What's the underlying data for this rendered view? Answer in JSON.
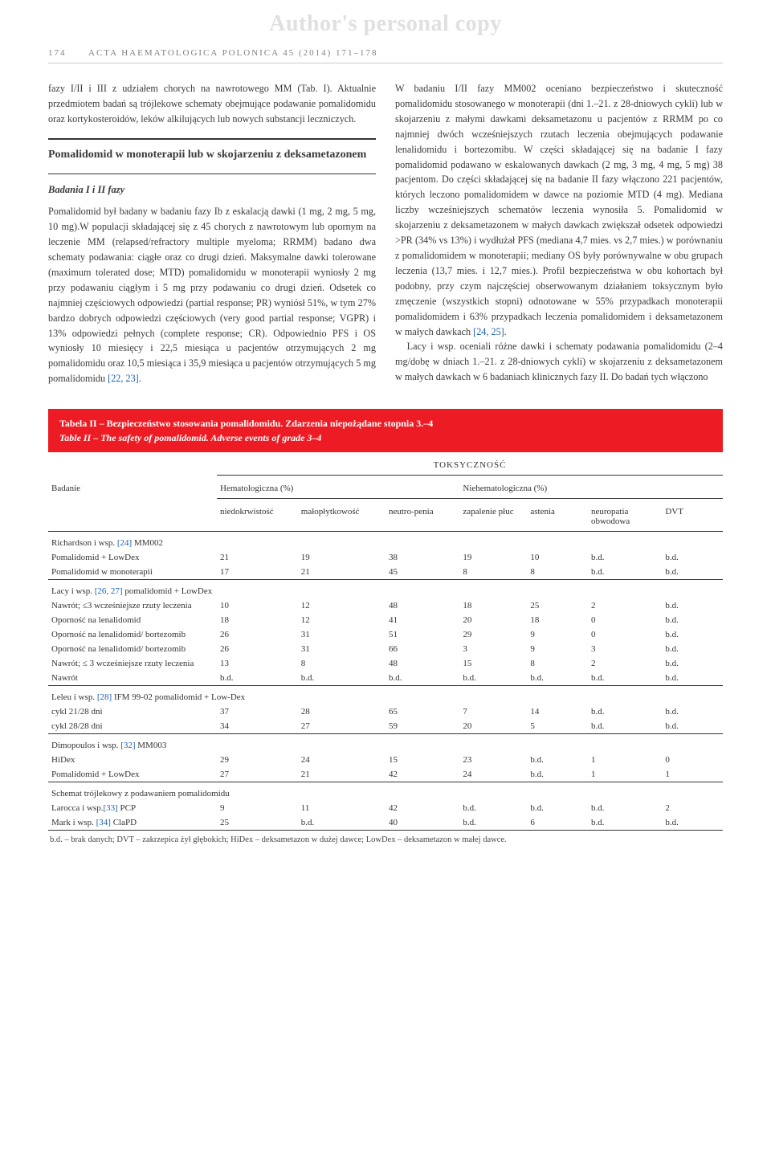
{
  "watermark": "Author's personal copy",
  "header": {
    "page_number": "174",
    "journal_line": "ACTA HAEMATOLOGICA POLONICA 45 (2014) 171–178"
  },
  "left_column": {
    "p1": "fazy I/II i III z udziałem chorych na nawrotowego MM (Tab. I). Aktualnie przedmiotem badań są trójlekowe schematy obejmujące podawanie pomalidomidu oraz kortykosteroidów, leków alkilujących lub nowych substancji leczniczych.",
    "section_title": "Pomalidomid w monoterapii lub w skojarzeniu z deksametazonem",
    "subheading1": "Badania I i II fazy",
    "p2": "Pomalidomid był badany w badaniu fazy Ib z eskalacją dawki (1 mg, 2 mg, 5 mg, 10 mg).W populacji składającej się z 45 chorych z nawrotowym lub opornym na leczenie MM (relapsed/refractory multiple myeloma; RRMM) badano dwa schematy podawania: ciągłe oraz co drugi dzień. Maksymalne dawki tolerowane (maximum tolerated dose; MTD) pomalidomidu w monoterapii wyniosły 2 mg przy podawaniu ciągłym i 5 mg przy podawaniu co drugi dzień. Odsetek co najmniej częściowych odpowiedzi (partial response; PR) wyniósł 51%, w tym 27% bardzo dobrych odpowiedzi częściowych (very good partial response; VGPR) i 13% odpowiedzi pełnych (complete response; CR). Odpowiednio PFS i OS wyniosły 10 miesięcy i 22,5 miesiąca u pacjentów otrzymujących 2 mg pomalidomidu oraz 10,5 miesiąca i 35,9 miesiąca u pacjentów otrzymujących 5 mg pomalidomidu ",
    "refs1": "[22, 23]",
    "p2_tail": "."
  },
  "right_column": {
    "p1a": "W badaniu I/II fazy MM002 oceniano bezpieczeństwo i skuteczność pomalidomidu stosowanego w monoterapii (dni 1.–21. z 28-dniowych cykli) lub w skojarzeniu z małymi dawkami deksametazonu u pacjentów z RRMM po co najmniej dwóch wcześniejszych rzutach leczenia obejmujących podawanie lenalidomidu i bortezomibu. W części składającej się na badanie I fazy pomalidomid podawano w eskalowanych dawkach (2 mg, 3 mg, 4 mg, 5 mg) 38 pacjentom. Do części składającej się na badanie II fazy włączono 221 pacjentów, których leczono pomalidomidem w dawce na poziomie MTD (4 mg). Mediana liczby wcześniejszych schematów leczenia wynosiła 5. Pomalidomid w skojarzeniu z deksametazonem w małych dawkach zwiększał odsetek odpowiedzi >PR (34% vs 13%) i wydłużał PFS (mediana 4,7 mies. vs 2,7 mies.) w porównaniu z pomalidomidem w monoterapii; mediany OS były porównywalne w obu grupach leczenia (13,7 mies. i 12,7 mies.). Profil bezpieczeństwa w obu kohortach był podobny, przy czym najczęściej obserwowanym działaniem toksycznym było zmęczenie (wszystkich stopni) odnotowane w 55% przypadkach monoterapii pomalidomidem i 63% przypadkach leczenia pomalidomidem i deksametazonem w małych dawkach ",
    "refs1": "[24, 25]",
    "p1b": ".",
    "p2": "Lacy i wsp. oceniali różne dawki i schematy podawania pomalidomidu (2–4 mg/dobę w dniach 1.–21. z 28-dniowych cykli) w skojarzeniu z deksametazonem w małych dawkach w 6 badaniach klinicznych fazy II. Do badań tych włączono"
  },
  "table": {
    "title_pl": "Tabela II – Bezpieczeństwo stosowania pomalidomidu. Zdarzenia niepożądane stopnia 3.–4",
    "title_en": "Table II – The safety of pomalidomid. Adverse events of grade 3–4",
    "toxheader": "TOKSYCZNOŚĆ",
    "col_study": "Badanie",
    "col_hema": "Hematologiczna (%)",
    "col_nonhema": "Niehematologiczna (%)",
    "sub": {
      "niedokrwistosc": "niedokrwistość",
      "maloplytkowosc": "małopłytkowość",
      "neutropenia": "neutro-penia",
      "zapalenie": "zapalenie płuc",
      "astenia": "astenia",
      "neuropatia": "neuropatia obwodowa",
      "dvt": "DVT"
    },
    "groups": [
      {
        "label": "Richardson i wsp. ",
        "ref": "[24]",
        "label_tail": " MM002",
        "rows": [
          {
            "name": "Pomalidomid + LowDex",
            "v": [
              "21",
              "19",
              "38",
              "19",
              "10",
              "b.d.",
              "b.d."
            ]
          },
          {
            "name": "Pomalidomid w monoterapii",
            "v": [
              "17",
              "21",
              "45",
              "8",
              "8",
              "b.d.",
              "b.d."
            ]
          }
        ]
      },
      {
        "label": "Lacy i wsp. ",
        "ref": "[26, 27]",
        "label_tail": " pomalidomid + LowDex",
        "rows": [
          {
            "name": "Nawrót; ≤3 wcześniejsze rzuty leczenia",
            "v": [
              "10",
              "12",
              "48",
              "18",
              "25",
              "2",
              "b.d."
            ]
          },
          {
            "name": "Oporność na lenalidomid",
            "v": [
              "18",
              "12",
              "41",
              "20",
              "18",
              "0",
              "b.d."
            ]
          },
          {
            "name": "Oporność na lenalidomid/ bortezomib",
            "v": [
              "26",
              "31",
              "51",
              "29",
              "9",
              "0",
              "b.d."
            ]
          },
          {
            "name": "Oporność na lenalidomid/ bortezomib",
            "v": [
              "26",
              "31",
              "66",
              "3",
              "9",
              "3",
              "b.d."
            ]
          },
          {
            "name": "Nawrót; ≤ 3 wcześniejsze rzuty leczenia",
            "v": [
              "13",
              "8",
              "48",
              "15",
              "8",
              "2",
              "b.d."
            ]
          },
          {
            "name": "Nawrót",
            "v": [
              "b.d.",
              "b.d.",
              "b.d.",
              "b.d.",
              "b.d.",
              "b.d.",
              "b.d."
            ]
          }
        ]
      },
      {
        "label": "Leleu i wsp. ",
        "ref": "[28]",
        "label_tail": " IFM 99-02 pomalidomid + Low-Dex",
        "rows": [
          {
            "name": "cykl 21/28 dni",
            "v": [
              "37",
              "28",
              "65",
              "7",
              "14",
              "b.d.",
              "b.d."
            ]
          },
          {
            "name": "cykl 28/28 dni",
            "v": [
              "34",
              "27",
              "59",
              "20",
              "5",
              "b.d.",
              "b.d."
            ]
          }
        ]
      },
      {
        "label": "Dimopoulos i wsp. ",
        "ref": "[32]",
        "label_tail": " MM003",
        "rows": [
          {
            "name": "HiDex",
            "v": [
              "29",
              "24",
              "15",
              "23",
              "b.d.",
              "1",
              "0"
            ]
          },
          {
            "name": "Pomalidomid + LowDex",
            "v": [
              "27",
              "21",
              "42",
              "24",
              "b.d.",
              "1",
              "1"
            ]
          }
        ]
      },
      {
        "label": "Schemat trójlekowy z podawaniem pomalidomidu",
        "ref": "",
        "label_tail": "",
        "rows": [
          {
            "name": "Larocca i wsp.",
            "ref": "[33]",
            "name_tail": " PCP",
            "v": [
              "9",
              "11",
              "42",
              "b.d.",
              "b.d.",
              "b.d.",
              "2"
            ]
          },
          {
            "name": "Mark i wsp. ",
            "ref": "[34]",
            "name_tail": " ClaPD",
            "v": [
              "25",
              "b.d.",
              "40",
              "b.d.",
              "6",
              "b.d.",
              "b.d."
            ]
          }
        ]
      }
    ],
    "footnote": "b.d. – brak danych; DVT – zakrzepica żył głębokich; HiDex – deksametazon w dużej dawce; LowDex – deksametazon w małej dawce."
  },
  "colors": {
    "watermark": "#e0e0e0",
    "table_header_bg": "#ed1c24",
    "table_header_fg": "#ffffff",
    "ref": "#1a5fb4",
    "body_text": "#3a3a3a",
    "rule": "#333333"
  }
}
